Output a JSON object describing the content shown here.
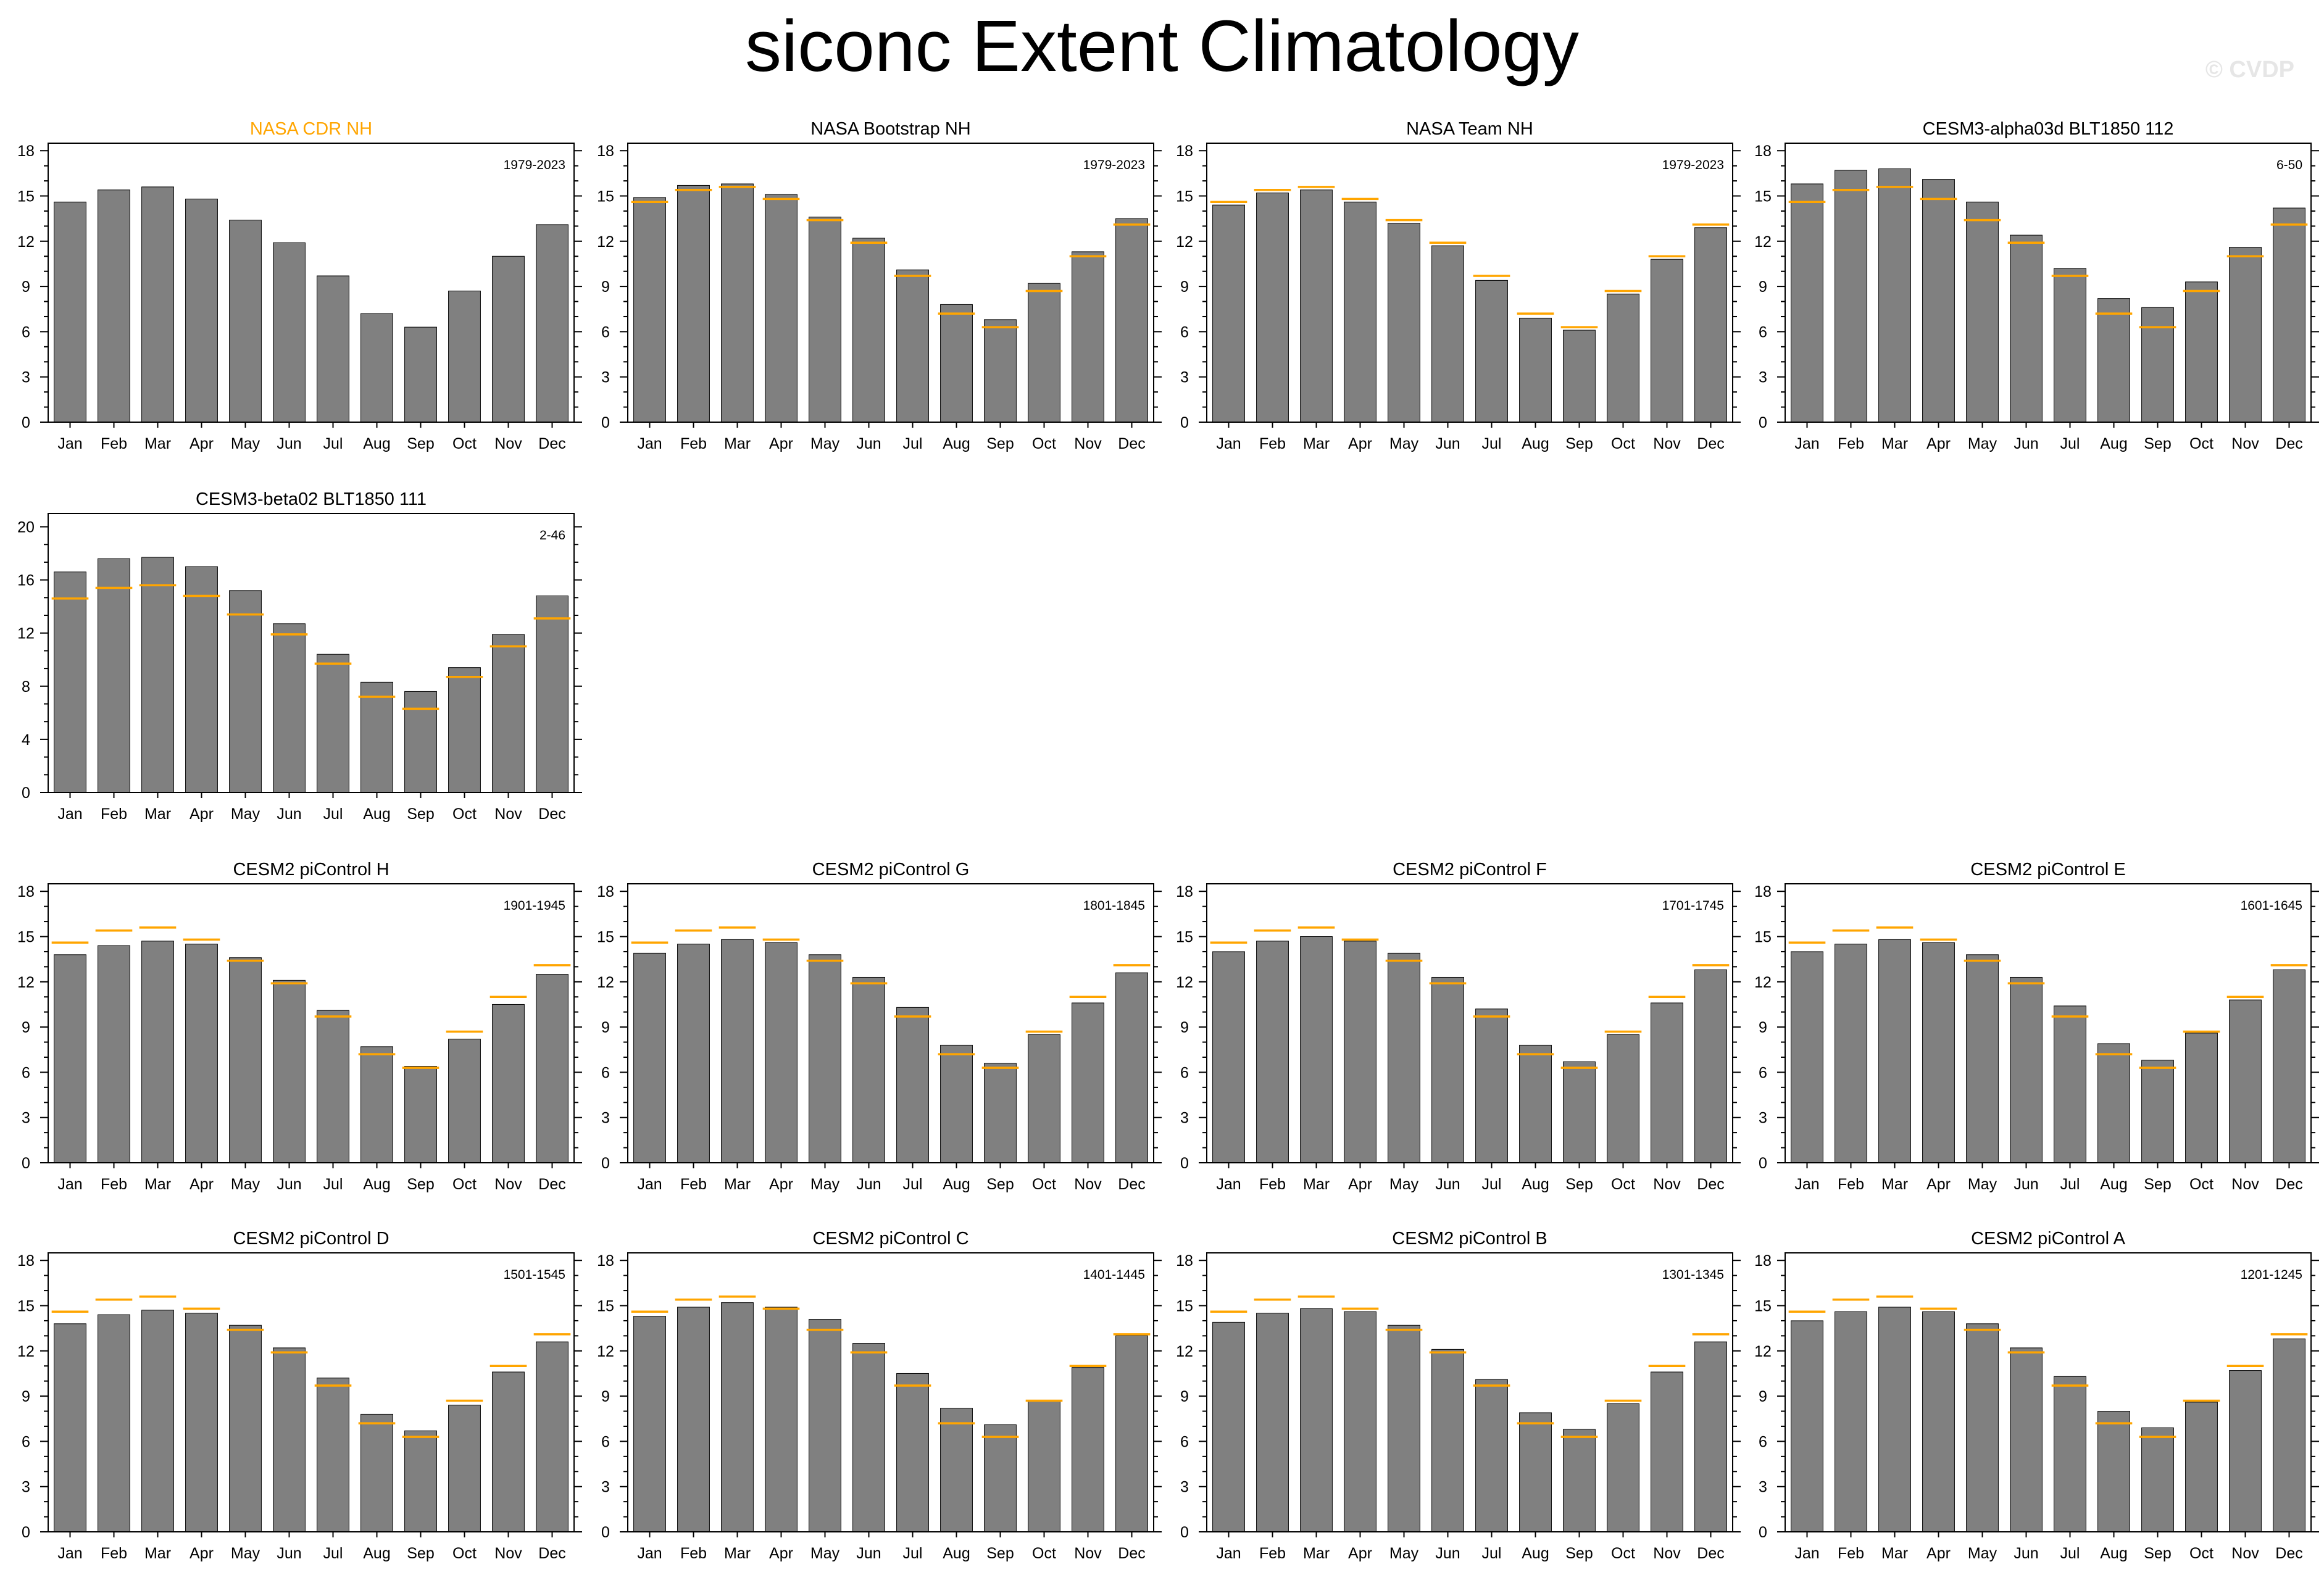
{
  "figure": {
    "title": "siconc Extent Climatology",
    "watermark": "© CVDP",
    "reference_panel": "NASA CDR NH",
    "colors": {
      "bar": "#808080",
      "reference_line": "#ffa500",
      "reference_title": "#ffa500",
      "text": "#000000"
    }
  },
  "chart_data": [
    {
      "type": "bar",
      "title": "NASA CDR NH",
      "period": "1979-2023",
      "categories": [
        "Jan",
        "Feb",
        "Mar",
        "Apr",
        "May",
        "Jun",
        "Jul",
        "Aug",
        "Sep",
        "Oct",
        "Nov",
        "Dec"
      ],
      "values": [
        14.6,
        15.4,
        15.6,
        14.8,
        13.4,
        11.9,
        9.7,
        7.2,
        6.3,
        8.7,
        11.0,
        13.1
      ],
      "reference_values": null,
      "ylim": [
        0,
        18.5
      ],
      "yticks": [
        0,
        3,
        6,
        9,
        12,
        15,
        18
      ],
      "xlabel": "",
      "ylabel": ""
    },
    {
      "type": "bar",
      "title": "NASA Bootstrap NH",
      "period": "1979-2023",
      "categories": [
        "Jan",
        "Feb",
        "Mar",
        "Apr",
        "May",
        "Jun",
        "Jul",
        "Aug",
        "Sep",
        "Oct",
        "Nov",
        "Dec"
      ],
      "values": [
        14.9,
        15.7,
        15.8,
        15.1,
        13.6,
        12.2,
        10.1,
        7.8,
        6.8,
        9.2,
        11.3,
        13.5
      ],
      "reference_values": [
        14.6,
        15.4,
        15.6,
        14.8,
        13.4,
        11.9,
        9.7,
        7.2,
        6.3,
        8.7,
        11.0,
        13.1
      ],
      "ylim": [
        0,
        18.5
      ],
      "yticks": [
        0,
        3,
        6,
        9,
        12,
        15,
        18
      ],
      "xlabel": "",
      "ylabel": ""
    },
    {
      "type": "bar",
      "title": "NASA Team NH",
      "period": "1979-2023",
      "categories": [
        "Jan",
        "Feb",
        "Mar",
        "Apr",
        "May",
        "Jun",
        "Jul",
        "Aug",
        "Sep",
        "Oct",
        "Nov",
        "Dec"
      ],
      "values": [
        14.4,
        15.2,
        15.4,
        14.6,
        13.2,
        11.7,
        9.4,
        6.9,
        6.1,
        8.5,
        10.8,
        12.9
      ],
      "reference_values": [
        14.6,
        15.4,
        15.6,
        14.8,
        13.4,
        11.9,
        9.7,
        7.2,
        6.3,
        8.7,
        11.0,
        13.1
      ],
      "ylim": [
        0,
        18.5
      ],
      "yticks": [
        0,
        3,
        6,
        9,
        12,
        15,
        18
      ],
      "xlabel": "",
      "ylabel": ""
    },
    {
      "type": "bar",
      "title": "CESM3-alpha03d BLT1850 112",
      "period": "6-50",
      "categories": [
        "Jan",
        "Feb",
        "Mar",
        "Apr",
        "May",
        "Jun",
        "Jul",
        "Aug",
        "Sep",
        "Oct",
        "Nov",
        "Dec"
      ],
      "values": [
        15.8,
        16.7,
        16.8,
        16.1,
        14.6,
        12.4,
        10.2,
        8.2,
        7.6,
        9.3,
        11.6,
        14.2
      ],
      "reference_values": [
        14.6,
        15.4,
        15.6,
        14.8,
        13.4,
        11.9,
        9.7,
        7.2,
        6.3,
        8.7,
        11.0,
        13.1
      ],
      "ylim": [
        0,
        18.5
      ],
      "yticks": [
        0,
        3,
        6,
        9,
        12,
        15,
        18
      ],
      "xlabel": "",
      "ylabel": ""
    },
    {
      "type": "bar",
      "title": "CESM3-beta02 BLT1850 111",
      "period": "2-46",
      "categories": [
        "Jan",
        "Feb",
        "Mar",
        "Apr",
        "May",
        "Jun",
        "Jul",
        "Aug",
        "Sep",
        "Oct",
        "Nov",
        "Dec"
      ],
      "values": [
        16.6,
        17.6,
        17.7,
        17.0,
        15.2,
        12.7,
        10.4,
        8.3,
        7.6,
        9.4,
        11.9,
        14.8
      ],
      "reference_values": [
        14.6,
        15.4,
        15.6,
        14.8,
        13.4,
        11.9,
        9.7,
        7.2,
        6.3,
        8.7,
        11.0,
        13.1
      ],
      "ylim": [
        0,
        21
      ],
      "yticks": [
        0,
        4,
        8,
        12,
        16,
        20
      ],
      "xlabel": "",
      "ylabel": ""
    },
    {
      "type": "bar",
      "title": "CESM2 piControl H",
      "period": "1901-1945",
      "categories": [
        "Jan",
        "Feb",
        "Mar",
        "Apr",
        "May",
        "Jun",
        "Jul",
        "Aug",
        "Sep",
        "Oct",
        "Nov",
        "Dec"
      ],
      "values": [
        13.8,
        14.4,
        14.7,
        14.5,
        13.6,
        12.1,
        10.1,
        7.7,
        6.4,
        8.2,
        10.5,
        12.5
      ],
      "reference_values": [
        14.6,
        15.4,
        15.6,
        14.8,
        13.4,
        11.9,
        9.7,
        7.2,
        6.3,
        8.7,
        11.0,
        13.1
      ],
      "ylim": [
        0,
        18.5
      ],
      "yticks": [
        0,
        3,
        6,
        9,
        12,
        15,
        18
      ],
      "xlabel": "",
      "ylabel": ""
    },
    {
      "type": "bar",
      "title": "CESM2 piControl G",
      "period": "1801-1845",
      "categories": [
        "Jan",
        "Feb",
        "Mar",
        "Apr",
        "May",
        "Jun",
        "Jul",
        "Aug",
        "Sep",
        "Oct",
        "Nov",
        "Dec"
      ],
      "values": [
        13.9,
        14.5,
        14.8,
        14.6,
        13.8,
        12.3,
        10.3,
        7.8,
        6.6,
        8.5,
        10.6,
        12.6
      ],
      "reference_values": [
        14.6,
        15.4,
        15.6,
        14.8,
        13.4,
        11.9,
        9.7,
        7.2,
        6.3,
        8.7,
        11.0,
        13.1
      ],
      "ylim": [
        0,
        18.5
      ],
      "yticks": [
        0,
        3,
        6,
        9,
        12,
        15,
        18
      ],
      "xlabel": "",
      "ylabel": ""
    },
    {
      "type": "bar",
      "title": "CESM2 piControl F",
      "period": "1701-1745",
      "categories": [
        "Jan",
        "Feb",
        "Mar",
        "Apr",
        "May",
        "Jun",
        "Jul",
        "Aug",
        "Sep",
        "Oct",
        "Nov",
        "Dec"
      ],
      "values": [
        14.0,
        14.7,
        15.0,
        14.7,
        13.9,
        12.3,
        10.2,
        7.8,
        6.7,
        8.5,
        10.6,
        12.8
      ],
      "reference_values": [
        14.6,
        15.4,
        15.6,
        14.8,
        13.4,
        11.9,
        9.7,
        7.2,
        6.3,
        8.7,
        11.0,
        13.1
      ],
      "ylim": [
        0,
        18.5
      ],
      "yticks": [
        0,
        3,
        6,
        9,
        12,
        15,
        18
      ],
      "xlabel": "",
      "ylabel": ""
    },
    {
      "type": "bar",
      "title": "CESM2 piControl E",
      "period": "1601-1645",
      "categories": [
        "Jan",
        "Feb",
        "Mar",
        "Apr",
        "May",
        "Jun",
        "Jul",
        "Aug",
        "Sep",
        "Oct",
        "Nov",
        "Dec"
      ],
      "values": [
        14.0,
        14.5,
        14.8,
        14.6,
        13.8,
        12.3,
        10.4,
        7.9,
        6.8,
        8.6,
        10.8,
        12.8
      ],
      "reference_values": [
        14.6,
        15.4,
        15.6,
        14.8,
        13.4,
        11.9,
        9.7,
        7.2,
        6.3,
        8.7,
        11.0,
        13.1
      ],
      "ylim": [
        0,
        18.5
      ],
      "yticks": [
        0,
        3,
        6,
        9,
        12,
        15,
        18
      ],
      "xlabel": "",
      "ylabel": ""
    },
    {
      "type": "bar",
      "title": "CESM2 piControl D",
      "period": "1501-1545",
      "categories": [
        "Jan",
        "Feb",
        "Mar",
        "Apr",
        "May",
        "Jun",
        "Jul",
        "Aug",
        "Sep",
        "Oct",
        "Nov",
        "Dec"
      ],
      "values": [
        13.8,
        14.4,
        14.7,
        14.5,
        13.7,
        12.2,
        10.2,
        7.8,
        6.7,
        8.4,
        10.6,
        12.6
      ],
      "reference_values": [
        14.6,
        15.4,
        15.6,
        14.8,
        13.4,
        11.9,
        9.7,
        7.2,
        6.3,
        8.7,
        11.0,
        13.1
      ],
      "ylim": [
        0,
        18.5
      ],
      "yticks": [
        0,
        3,
        6,
        9,
        12,
        15,
        18
      ],
      "xlabel": "",
      "ylabel": ""
    },
    {
      "type": "bar",
      "title": "CESM2 piControl C",
      "period": "1401-1445",
      "categories": [
        "Jan",
        "Feb",
        "Mar",
        "Apr",
        "May",
        "Jun",
        "Jul",
        "Aug",
        "Sep",
        "Oct",
        "Nov",
        "Dec"
      ],
      "values": [
        14.3,
        14.9,
        15.2,
        14.9,
        14.1,
        12.5,
        10.5,
        8.2,
        7.1,
        8.7,
        10.9,
        13.0
      ],
      "reference_values": [
        14.6,
        15.4,
        15.6,
        14.8,
        13.4,
        11.9,
        9.7,
        7.2,
        6.3,
        8.7,
        11.0,
        13.1
      ],
      "ylim": [
        0,
        18.5
      ],
      "yticks": [
        0,
        3,
        6,
        9,
        12,
        15,
        18
      ],
      "xlabel": "",
      "ylabel": ""
    },
    {
      "type": "bar",
      "title": "CESM2 piControl B",
      "period": "1301-1345",
      "categories": [
        "Jan",
        "Feb",
        "Mar",
        "Apr",
        "May",
        "Jun",
        "Jul",
        "Aug",
        "Sep",
        "Oct",
        "Nov",
        "Dec"
      ],
      "values": [
        13.9,
        14.5,
        14.8,
        14.6,
        13.7,
        12.1,
        10.1,
        7.9,
        6.8,
        8.5,
        10.6,
        12.6
      ],
      "reference_values": [
        14.6,
        15.4,
        15.6,
        14.8,
        13.4,
        11.9,
        9.7,
        7.2,
        6.3,
        8.7,
        11.0,
        13.1
      ],
      "ylim": [
        0,
        18.5
      ],
      "yticks": [
        0,
        3,
        6,
        9,
        12,
        15,
        18
      ],
      "xlabel": "",
      "ylabel": ""
    },
    {
      "type": "bar",
      "title": "CESM2 piControl A",
      "period": "1201-1245",
      "categories": [
        "Jan",
        "Feb",
        "Mar",
        "Apr",
        "May",
        "Jun",
        "Jul",
        "Aug",
        "Sep",
        "Oct",
        "Nov",
        "Dec"
      ],
      "values": [
        14.0,
        14.6,
        14.9,
        14.6,
        13.8,
        12.2,
        10.3,
        8.0,
        6.9,
        8.6,
        10.7,
        12.8
      ],
      "reference_values": [
        14.6,
        15.4,
        15.6,
        14.8,
        13.4,
        11.9,
        9.7,
        7.2,
        6.3,
        8.7,
        11.0,
        13.1
      ],
      "ylim": [
        0,
        18.5
      ],
      "yticks": [
        0,
        3,
        6,
        9,
        12,
        15,
        18
      ],
      "xlabel": "",
      "ylabel": ""
    }
  ]
}
